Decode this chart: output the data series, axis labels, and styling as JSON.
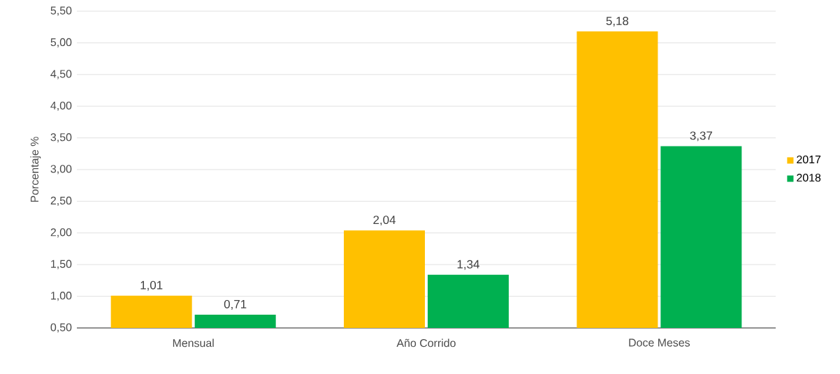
{
  "chart_data": {
    "type": "bar",
    "ylabel": "Porcentaje %",
    "categories": [
      "Mensual",
      "Año Corrido",
      "Doce Meses"
    ],
    "series": [
      {
        "name": "2017",
        "color": "#ffc000",
        "values": [
          1.01,
          2.04,
          5.18
        ],
        "value_labels": [
          "1,01",
          "2,04",
          "5,18"
        ]
      },
      {
        "name": "2018",
        "color": "#00b050",
        "values": [
          0.71,
          1.34,
          3.37
        ],
        "value_labels": [
          "0,71",
          "1,34",
          "3,37"
        ]
      }
    ],
    "ylim": [
      0.5,
      5.5
    ],
    "yticks": [
      {
        "value": 0.5,
        "label": "0,50"
      },
      {
        "value": 1.0,
        "label": "1,00"
      },
      {
        "value": 1.5,
        "label": "1,50"
      },
      {
        "value": 2.0,
        "label": "2,00"
      },
      {
        "value": 2.5,
        "label": "2,50"
      },
      {
        "value": 3.0,
        "label": "3,00"
      },
      {
        "value": 3.5,
        "label": "3,50"
      },
      {
        "value": 4.0,
        "label": "4,00"
      },
      {
        "value": 4.5,
        "label": "4,50"
      },
      {
        "value": 5.0,
        "label": "5,00"
      },
      {
        "value": 5.5,
        "label": "5,50"
      }
    ],
    "grid": "y",
    "legend": "right"
  }
}
